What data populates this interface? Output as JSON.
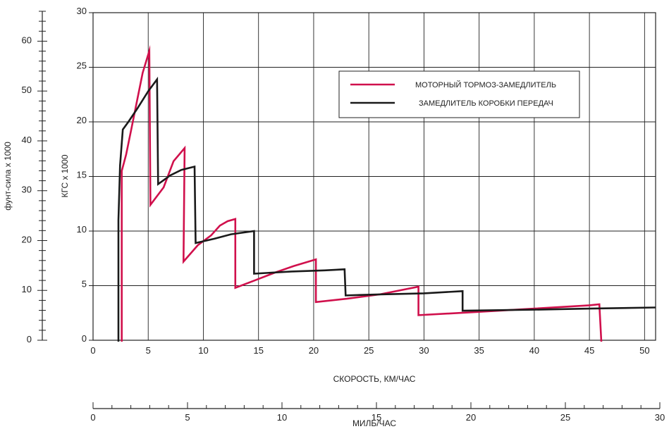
{
  "chart_data": {
    "type": "line",
    "xlabel": "СКОРОСТЬ, КМ/ЧАС",
    "ylabel": "КГС x 1000",
    "xlim": [
      0,
      51
    ],
    "ylim": [
      0,
      30
    ],
    "x_ticks": [
      0,
      5,
      10,
      15,
      20,
      25,
      30,
      35,
      40,
      45,
      50
    ],
    "y_ticks": [
      0,
      5,
      10,
      15,
      20,
      25,
      30
    ],
    "grid": true,
    "legend_position": "top-right",
    "secondary_x_axis": {
      "label": "МИЛЬ/ЧАС",
      "range": [
        0,
        30
      ],
      "ticks": [
        0,
        5,
        10,
        15,
        20,
        25,
        30
      ]
    },
    "secondary_y_axis": {
      "label": "фунт-сила x 1000",
      "range": [
        0,
        66
      ],
      "ticks": [
        0,
        10,
        20,
        30,
        40,
        50,
        60
      ]
    },
    "colors": {
      "engine": "#d0104c",
      "gearbox": "#1a1a1a",
      "grid": "#222222"
    },
    "series": [
      {
        "name": "МОТОРНЫЙ ТОРМОЗ-ЗАМЕДЛИТЕЛЬ",
        "color": "#d0104c",
        "points": [
          [
            2.6,
            -0.5
          ],
          [
            2.6,
            15.5
          ],
          [
            3.0,
            17
          ],
          [
            3.5,
            19.5
          ],
          [
            4.0,
            22
          ],
          [
            4.5,
            24.5
          ],
          [
            5.1,
            26.5
          ],
          [
            5.2,
            12.4
          ],
          [
            6.4,
            14
          ],
          [
            7.3,
            16.4
          ],
          [
            8.3,
            17.6
          ],
          [
            8.2,
            7.2
          ],
          [
            9.5,
            8.7
          ],
          [
            10.7,
            9.6
          ],
          [
            11.5,
            10.5
          ],
          [
            12.2,
            10.9
          ],
          [
            12.9,
            11.1
          ],
          [
            12.9,
            4.8
          ],
          [
            14.7,
            5.5
          ],
          [
            16.5,
            6.2
          ],
          [
            18.2,
            6.8
          ],
          [
            20.2,
            7.4
          ],
          [
            20.2,
            3.5
          ],
          [
            23,
            3.8
          ],
          [
            26,
            4.2
          ],
          [
            29.5,
            4.9
          ],
          [
            29.5,
            2.3
          ],
          [
            35,
            2.6
          ],
          [
            40,
            2.9
          ],
          [
            45,
            3.2
          ],
          [
            45.9,
            3.3
          ],
          [
            46.1,
            -0.5
          ]
        ]
      },
      {
        "name": "ЗАМЕДЛИТЕЛЬ КОРОБКИ ПЕРЕДАЧ",
        "color": "#1a1a1a",
        "points": [
          [
            2.3,
            -0.5
          ],
          [
            2.3,
            11
          ],
          [
            2.45,
            16
          ],
          [
            2.7,
            19.3
          ],
          [
            3.2,
            20
          ],
          [
            4,
            21.2
          ],
          [
            5,
            22.8
          ],
          [
            5.8,
            23.9
          ],
          [
            5.9,
            14.3
          ],
          [
            7,
            15.1
          ],
          [
            8,
            15.6
          ],
          [
            9.2,
            15.9
          ],
          [
            9.3,
            8.9
          ],
          [
            11,
            9.3
          ],
          [
            12.5,
            9.7
          ],
          [
            14.6,
            10.0
          ],
          [
            14.6,
            6.1
          ],
          [
            18,
            6.3
          ],
          [
            21,
            6.4
          ],
          [
            22.8,
            6.5
          ],
          [
            22.9,
            4.1
          ],
          [
            26,
            4.2
          ],
          [
            30,
            4.3
          ],
          [
            33.5,
            4.5
          ],
          [
            33.5,
            2.7
          ],
          [
            40,
            2.8
          ],
          [
            45,
            2.9
          ],
          [
            51,
            3.0
          ]
        ]
      }
    ]
  }
}
